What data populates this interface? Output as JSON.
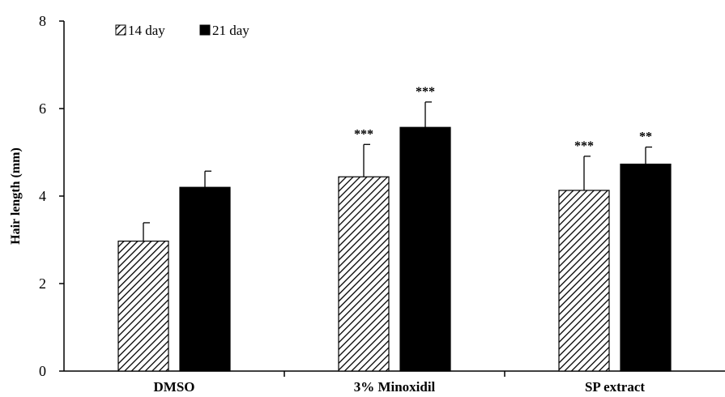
{
  "chart_data": {
    "type": "bar",
    "title": "",
    "xlabel": "",
    "ylabel": "Hair length (mm)",
    "ylim": [
      0,
      8
    ],
    "yticks": [
      0,
      2,
      4,
      6,
      8
    ],
    "grid": false,
    "legend_position": "top-left",
    "categories": [
      "DMSO",
      "3% Minoxidil",
      "SP extract"
    ],
    "series": [
      {
        "name": "14 day",
        "pattern": "diagonal-hatch",
        "values": [
          2.97,
          4.44,
          4.13
        ],
        "errors": [
          0.42,
          0.74,
          0.78
        ],
        "significance": [
          "",
          "***",
          "***"
        ]
      },
      {
        "name": "21 day",
        "color": "#000000",
        "values": [
          4.2,
          5.57,
          4.73
        ],
        "errors": [
          0.37,
          0.58,
          0.39
        ],
        "significance": [
          "",
          "***",
          "**"
        ]
      }
    ]
  }
}
